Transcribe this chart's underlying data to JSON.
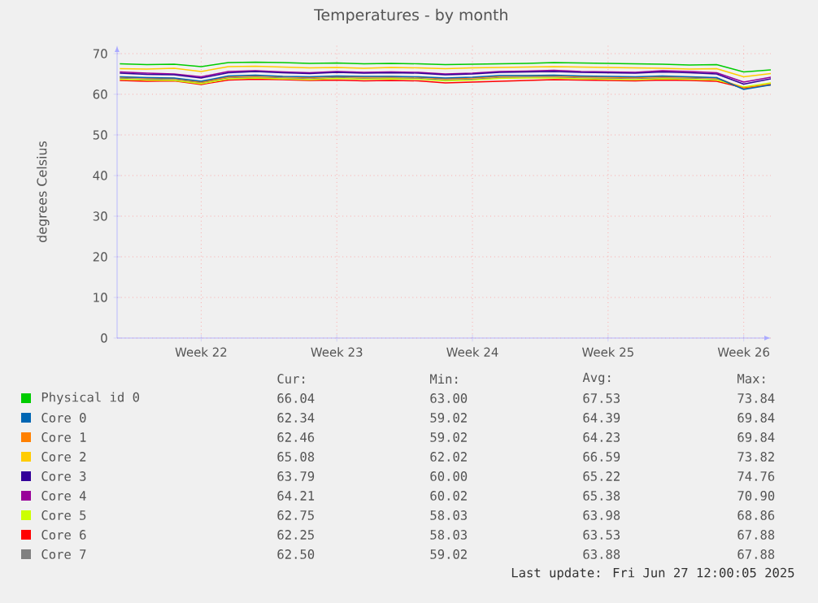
{
  "chart_data": {
    "type": "line",
    "title": "Temperatures - by month",
    "ylabel": "degrees Celsius",
    "categories": [
      null,
      null,
      null,
      "Week 22",
      null,
      null,
      null,
      null,
      "Week 23",
      null,
      null,
      null,
      null,
      "Week 24",
      null,
      null,
      null,
      null,
      "Week 25",
      null,
      null,
      null,
      null,
      "Week 26",
      null
    ],
    "ylim": [
      0,
      72
    ],
    "yticks": [
      0,
      10,
      20,
      30,
      40,
      50,
      60,
      70
    ],
    "grid": true,
    "legend": "bottom",
    "series": [
      {
        "name": "Physical id 0",
        "color": "#00cc00",
        "values": [
          67.5,
          67.3,
          67.4,
          66.8,
          67.8,
          67.9,
          67.8,
          67.6,
          67.7,
          67.5,
          67.6,
          67.5,
          67.3,
          67.4,
          67.5,
          67.6,
          67.8,
          67.7,
          67.6,
          67.5,
          67.4,
          67.2,
          67.3,
          65.5,
          66.0
        ]
      },
      {
        "name": "Core 0",
        "color": "#0066b3",
        "values": [
          64.3,
          64.1,
          64.0,
          63.2,
          64.5,
          64.7,
          64.4,
          64.3,
          64.5,
          64.4,
          64.4,
          64.3,
          64.0,
          64.2,
          64.6,
          64.6,
          64.7,
          64.5,
          64.4,
          64.3,
          64.5,
          64.3,
          64.1,
          61.2,
          62.3
        ]
      },
      {
        "name": "Core 1",
        "color": "#ff8000",
        "values": [
          64.2,
          64.0,
          63.9,
          63.0,
          64.3,
          64.5,
          64.3,
          64.1,
          64.4,
          64.2,
          64.3,
          64.2,
          63.8,
          64.0,
          64.4,
          64.5,
          64.5,
          64.3,
          64.2,
          64.1,
          64.3,
          64.2,
          64.0,
          61.5,
          62.5
        ]
      },
      {
        "name": "Core 2",
        "color": "#ffcc00",
        "values": [
          66.3,
          66.2,
          66.4,
          65.6,
          66.8,
          66.9,
          66.7,
          66.5,
          66.6,
          66.4,
          66.6,
          66.5,
          66.3,
          66.5,
          66.6,
          66.7,
          66.8,
          66.7,
          66.6,
          66.5,
          66.4,
          66.2,
          66.3,
          64.3,
          65.1
        ]
      },
      {
        "name": "Core 3",
        "color": "#330099",
        "values": [
          65.2,
          64.9,
          64.8,
          64.0,
          65.3,
          65.6,
          65.3,
          65.1,
          65.4,
          65.2,
          65.3,
          65.2,
          64.8,
          65.0,
          65.4,
          65.5,
          65.6,
          65.4,
          65.3,
          65.2,
          65.5,
          65.3,
          65.0,
          62.5,
          63.8
        ]
      },
      {
        "name": "Core 4",
        "color": "#990099",
        "values": [
          65.5,
          65.2,
          65.0,
          64.3,
          65.6,
          65.8,
          65.5,
          65.3,
          65.6,
          65.4,
          65.5,
          65.4,
          65.0,
          65.2,
          65.6,
          65.7,
          65.9,
          65.6,
          65.5,
          65.4,
          65.8,
          65.6,
          65.3,
          63.0,
          64.2
        ]
      },
      {
        "name": "Core 5",
        "color": "#ccff00",
        "values": [
          63.7,
          63.5,
          63.4,
          62.6,
          63.8,
          64.0,
          63.8,
          63.6,
          63.9,
          63.7,
          63.8,
          63.7,
          63.3,
          63.5,
          63.9,
          64.0,
          64.0,
          63.8,
          63.7,
          63.6,
          63.8,
          63.7,
          63.5,
          61.8,
          62.8
        ]
      },
      {
        "name": "Core 6",
        "color": "#ff0000",
        "values": [
          63.4,
          63.2,
          63.3,
          62.4,
          63.5,
          63.7,
          63.6,
          63.4,
          63.5,
          63.3,
          63.4,
          63.3,
          62.8,
          63.0,
          63.2,
          63.4,
          63.6,
          63.5,
          63.4,
          63.3,
          63.5,
          63.4,
          63.2,
          61.6,
          62.3
        ]
      },
      {
        "name": "Core 7",
        "color": "#808080",
        "values": [
          63.9,
          63.7,
          63.6,
          62.8,
          64.0,
          64.2,
          64.0,
          63.8,
          64.1,
          63.9,
          64.0,
          63.9,
          63.5,
          63.7,
          64.1,
          64.2,
          64.2,
          64.0,
          63.9,
          63.8,
          64.0,
          63.9,
          63.7,
          61.4,
          62.5
        ]
      }
    ],
    "annotations": [
      "Cur:",
      "Min:",
      "Avg:",
      "Max:",
      "66.04",
      "63.00",
      "67.53",
      "73.84",
      "62.34",
      "59.02",
      "64.39",
      "69.84",
      "62.46",
      "59.02",
      "64.23",
      "69.84",
      "65.08",
      "62.02",
      "66.59",
      "73.82",
      "63.79",
      "60.00",
      "65.22",
      "74.76",
      "64.21",
      "60.02",
      "65.38",
      "70.90",
      "62.75",
      "58.03",
      "63.98",
      "68.86",
      "62.25",
      "58.03",
      "63.53",
      "67.88",
      "62.50",
      "59.02",
      "63.88",
      "67.88",
      "Last update: Fri Jun 27 12:00:05 2025"
    ]
  }
}
